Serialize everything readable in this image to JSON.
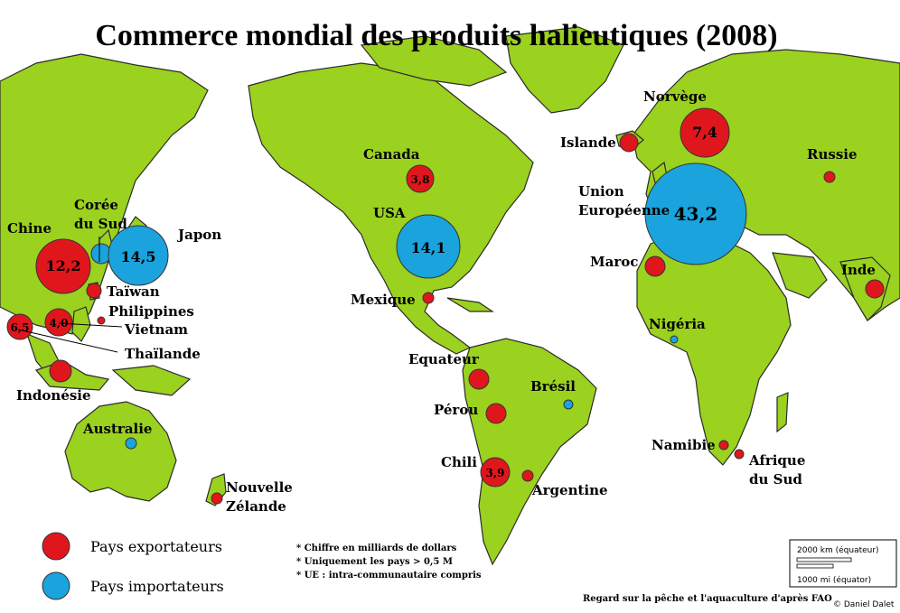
{
  "title": "Commerce mondial des produits halieutiques (2008)",
  "colors": {
    "land": "#9bd11f",
    "exporter": "#e0161d",
    "importer": "#1aa3dd"
  },
  "countries": [
    {
      "id": "chine",
      "name": "Chine",
      "type": "exporter",
      "value": "12,2"
    },
    {
      "id": "coree",
      "name": "Corée du Sud",
      "type": "importer",
      "value": ""
    },
    {
      "id": "japon",
      "name": "Japon",
      "type": "importer",
      "value": "14,5"
    },
    {
      "id": "taiwan",
      "name": "Taïwan",
      "type": "exporter",
      "value": ""
    },
    {
      "id": "philippines",
      "name": "Philippines",
      "type": "exporter",
      "value": ""
    },
    {
      "id": "vietnam",
      "name": "Vietnam",
      "type": "exporter",
      "value": "4,0"
    },
    {
      "id": "thailande",
      "name": "Thaïlande",
      "type": "exporter",
      "value": "6,5"
    },
    {
      "id": "indonesie",
      "name": "Indonésie",
      "type": "exporter",
      "value": ""
    },
    {
      "id": "australie",
      "name": "Australie",
      "type": "importer",
      "value": ""
    },
    {
      "id": "nz",
      "name": "Nouvelle Zélande",
      "type": "exporter",
      "value": ""
    },
    {
      "id": "canada",
      "name": "Canada",
      "type": "exporter",
      "value": "3,8"
    },
    {
      "id": "usa",
      "name": "USA",
      "type": "importer",
      "value": "14,1"
    },
    {
      "id": "mexique",
      "name": "Mexique",
      "type": "exporter",
      "value": ""
    },
    {
      "id": "equateur",
      "name": "Equateur",
      "type": "exporter",
      "value": ""
    },
    {
      "id": "perou",
      "name": "Pérou",
      "type": "exporter",
      "value": ""
    },
    {
      "id": "bresil",
      "name": "Brésil",
      "type": "importer",
      "value": ""
    },
    {
      "id": "chili",
      "name": "Chili",
      "type": "exporter",
      "value": "3,9"
    },
    {
      "id": "argentine",
      "name": "Argentine",
      "type": "exporter",
      "value": ""
    },
    {
      "id": "islande",
      "name": "Islande",
      "type": "exporter",
      "value": ""
    },
    {
      "id": "norvege",
      "name": "Norvège",
      "type": "exporter",
      "value": "7,4"
    },
    {
      "id": "ue",
      "name": "Union Européenne",
      "type": "importer",
      "value": "43,2"
    },
    {
      "id": "russie",
      "name": "Russie",
      "type": "exporter",
      "value": ""
    },
    {
      "id": "maroc",
      "name": "Maroc",
      "type": "exporter",
      "value": ""
    },
    {
      "id": "inde",
      "name": "Inde",
      "type": "exporter",
      "value": ""
    },
    {
      "id": "nigeria",
      "name": "Nigéria",
      "type": "importer",
      "value": ""
    },
    {
      "id": "namibie",
      "name": "Namibie",
      "type": "exporter",
      "value": ""
    },
    {
      "id": "afrique_sud",
      "name": "Afrique du Sud",
      "type": "exporter",
      "value": ""
    }
  ],
  "label_lines": {
    "coree_1": "Corée",
    "coree_2": "du Sud",
    "nz_1": "Nouvelle",
    "nz_2": "Zélande",
    "ue_1": "Union",
    "ue_2": "Européenne",
    "as_1": "Afrique",
    "as_2": "du Sud"
  },
  "legend": {
    "exporters": "Pays exportateurs",
    "importers": "Pays importateurs"
  },
  "notes": [
    "* Chiffre en milliards de dollars",
    "* Uniquement les pays > 0,5 M",
    "* UE : intra-communautaire compris"
  ],
  "scale": {
    "km": "2000 km (équateur)",
    "mi": "1000 mi (équator)"
  },
  "source": "Regard sur la pêche et l'aquaculture d'après FAO",
  "credit": "© Daniel Dalet"
}
